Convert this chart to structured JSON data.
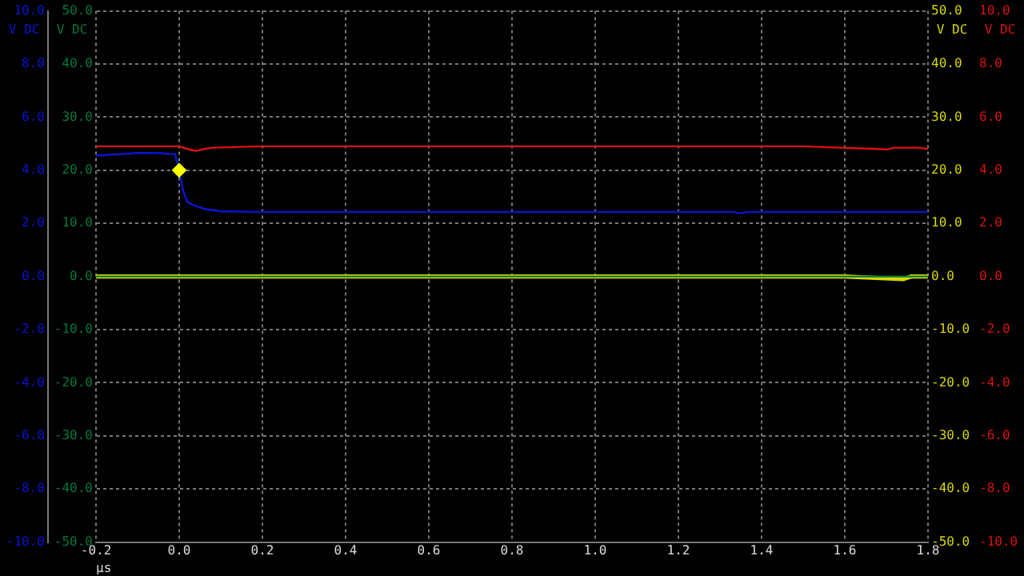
{
  "chart_data": {
    "type": "line",
    "xlabel": "µs",
    "ylabel": "V DC",
    "y2label": "V DC",
    "xlim": [
      -0.2,
      1.8
    ],
    "xticks": [
      {
        "value": -0.2,
        "label": "-0.2"
      },
      {
        "value": 0,
        "label": "0.0"
      },
      {
        "value": 0.2,
        "label": "0.2"
      },
      {
        "value": 0.4,
        "label": "0.4"
      },
      {
        "value": 0.6,
        "label": "0.6"
      },
      {
        "value": 0.8,
        "label": "0.8"
      },
      {
        "value": 1,
        "label": "1.0"
      },
      {
        "value": 1.2,
        "label": "1.2"
      },
      {
        "value": 1.4,
        "label": "1.4"
      },
      {
        "value": 1.6,
        "label": "1.6"
      },
      {
        "value": 1.8,
        "label": "1.8"
      }
    ],
    "ylim": [
      -10,
      10
    ],
    "yticks": [
      {
        "value": -10,
        "label": "-10.0"
      },
      {
        "value": -8,
        "label": "-8.0"
      },
      {
        "value": -6,
        "label": "-6.0"
      },
      {
        "value": -4,
        "label": "-4.0"
      },
      {
        "value": -2,
        "label": "-2.0"
      },
      {
        "value": 0,
        "label": "0.0"
      },
      {
        "value": 2,
        "label": "2.0"
      },
      {
        "value": 4,
        "label": "4.0"
      },
      {
        "value": 6,
        "label": "6.0"
      },
      {
        "value": 8,
        "label": "8.0"
      },
      {
        "value": 10,
        "label": "10.0"
      }
    ],
    "y2lim": [
      -50,
      50
    ],
    "y2ticks": [
      {
        "value": -50,
        "label": "-50.0"
      },
      {
        "value": -40,
        "label": "-40.0"
      },
      {
        "value": -30,
        "label": "-30.0"
      },
      {
        "value": -20,
        "label": "-20.0"
      },
      {
        "value": -10,
        "label": "-10.0"
      },
      {
        "value": 0,
        "label": "0.0"
      },
      {
        "value": 10,
        "label": "10.0"
      },
      {
        "value": 20,
        "label": "20.0"
      },
      {
        "value": 30,
        "label": "30.0"
      },
      {
        "value": 40,
        "label": "40.0"
      },
      {
        "value": 50,
        "label": "50.0"
      }
    ],
    "grid": true,
    "legend": false,
    "marker": "none",
    "line_style": "solid",
    "series": [
      {
        "color": "#d8d800",
        "axis": "y2",
        "x": [
          -0.2,
          0.2,
          0.4,
          0.8,
          1.2,
          1.6,
          1.74,
          1.76,
          1.8
        ],
        "values": [
          0,
          0,
          0,
          0,
          0,
          0,
          -0.5,
          0,
          0
        ]
      },
      {
        "color": "#007a3d",
        "axis": "y2",
        "x": [
          -0.2,
          1.8
        ],
        "values": [
          0,
          0
        ]
      },
      {
        "color": "#dd1111",
        "x": [
          -0.2,
          -0.1,
          0,
          0.02,
          0.04,
          0.06,
          0.08,
          0.2,
          0.5,
          0.8,
          1.2,
          1.5,
          1.68,
          1.7,
          1.72,
          1.78,
          1.8
        ],
        "values": [
          4.9,
          4.9,
          4.9,
          4.8,
          4.73,
          4.8,
          4.85,
          4.9,
          4.9,
          4.9,
          4.9,
          4.9,
          4.8,
          4.78,
          4.85,
          4.85,
          4.8
        ]
      },
      {
        "color": "#0a14d8",
        "x": [
          -0.2,
          -0.15,
          -0.1,
          -0.05,
          -0.01,
          0,
          0.01,
          0.02,
          0.04,
          0.06,
          0.1,
          0.2,
          0.5,
          0.8,
          1.33,
          1.35,
          1.37,
          1.8
        ],
        "values": [
          4.55,
          4.6,
          4.65,
          4.65,
          4.6,
          4.0,
          3.2,
          2.8,
          2.65,
          2.55,
          2.45,
          2.43,
          2.43,
          2.43,
          2.43,
          2.38,
          2.43,
          2.43
        ]
      },
      {
        "type": "scatter",
        "color": "#ffff00",
        "marker": "diamond",
        "x": [
          0
        ],
        "values": [
          4.0
        ]
      }
    ]
  }
}
